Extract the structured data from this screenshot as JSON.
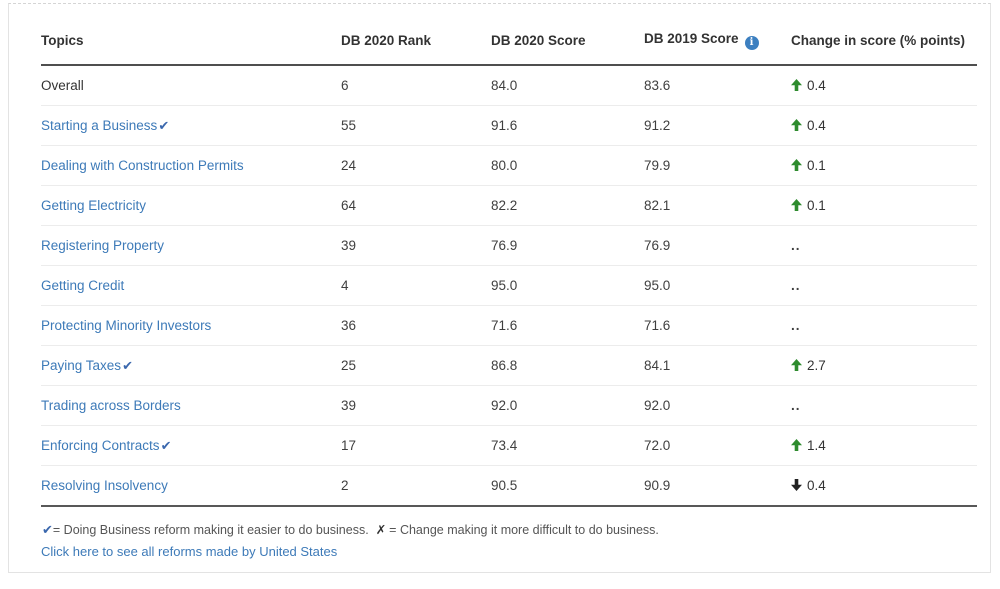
{
  "table": {
    "columns": [
      "Topics",
      "DB 2020 Rank",
      "DB 2020 Score",
      "DB 2019 Score",
      "Change in score (% points)"
    ],
    "no_change_symbol": "..",
    "rows": [
      {
        "topic": "Overall",
        "is_link": false,
        "reform_check": false,
        "rank": "6",
        "score_2020": "84.0",
        "score_2019": "83.6",
        "change": "0.4",
        "direction": "up"
      },
      {
        "topic": "Starting a Business",
        "is_link": true,
        "reform_check": true,
        "rank": "55",
        "score_2020": "91.6",
        "score_2019": "91.2",
        "change": "0.4",
        "direction": "up"
      },
      {
        "topic": "Dealing with Construction Permits",
        "is_link": true,
        "reform_check": false,
        "rank": "24",
        "score_2020": "80.0",
        "score_2019": "79.9",
        "change": "0.1",
        "direction": "up"
      },
      {
        "topic": "Getting Electricity",
        "is_link": true,
        "reform_check": false,
        "rank": "64",
        "score_2020": "82.2",
        "score_2019": "82.1",
        "change": "0.1",
        "direction": "up"
      },
      {
        "topic": "Registering Property",
        "is_link": true,
        "reform_check": false,
        "rank": "39",
        "score_2020": "76.9",
        "score_2019": "76.9",
        "change": "",
        "direction": "none"
      },
      {
        "topic": "Getting Credit",
        "is_link": true,
        "reform_check": false,
        "rank": "4",
        "score_2020": "95.0",
        "score_2019": "95.0",
        "change": "",
        "direction": "none"
      },
      {
        "topic": "Protecting Minority Investors",
        "is_link": true,
        "reform_check": false,
        "rank": "36",
        "score_2020": "71.6",
        "score_2019": "71.6",
        "change": "",
        "direction": "none"
      },
      {
        "topic": "Paying Taxes",
        "is_link": true,
        "reform_check": true,
        "rank": "25",
        "score_2020": "86.8",
        "score_2019": "84.1",
        "change": "2.7",
        "direction": "up"
      },
      {
        "topic": "Trading across Borders",
        "is_link": true,
        "reform_check": false,
        "rank": "39",
        "score_2020": "92.0",
        "score_2019": "92.0",
        "change": "",
        "direction": "none"
      },
      {
        "topic": "Enforcing Contracts",
        "is_link": true,
        "reform_check": true,
        "rank": "17",
        "score_2020": "73.4",
        "score_2019": "72.0",
        "change": "1.4",
        "direction": "up"
      },
      {
        "topic": "Resolving Insolvency",
        "is_link": true,
        "reform_check": false,
        "rank": "2",
        "score_2020": "90.5",
        "score_2019": "90.9",
        "change": "0.4",
        "direction": "down"
      }
    ]
  },
  "legend": {
    "check_symbol": "✔",
    "check_text": "= Doing Business reform making it easier to do business.",
    "x_symbol": "✗",
    "x_text": "=  Change making it more difficult to do business."
  },
  "links": {
    "see_all_reforms": "Click here to see all reforms made by United States"
  },
  "colors": {
    "link_blue": "#3d7ab8",
    "check_blue": "#3a67ad",
    "positive_green": "#2e8b2e",
    "negative_dark": "#222222",
    "info_icon_blue": "#3c7fc0",
    "header_rule_dark": "#4f4f4f",
    "row_divider": "#ececec"
  }
}
